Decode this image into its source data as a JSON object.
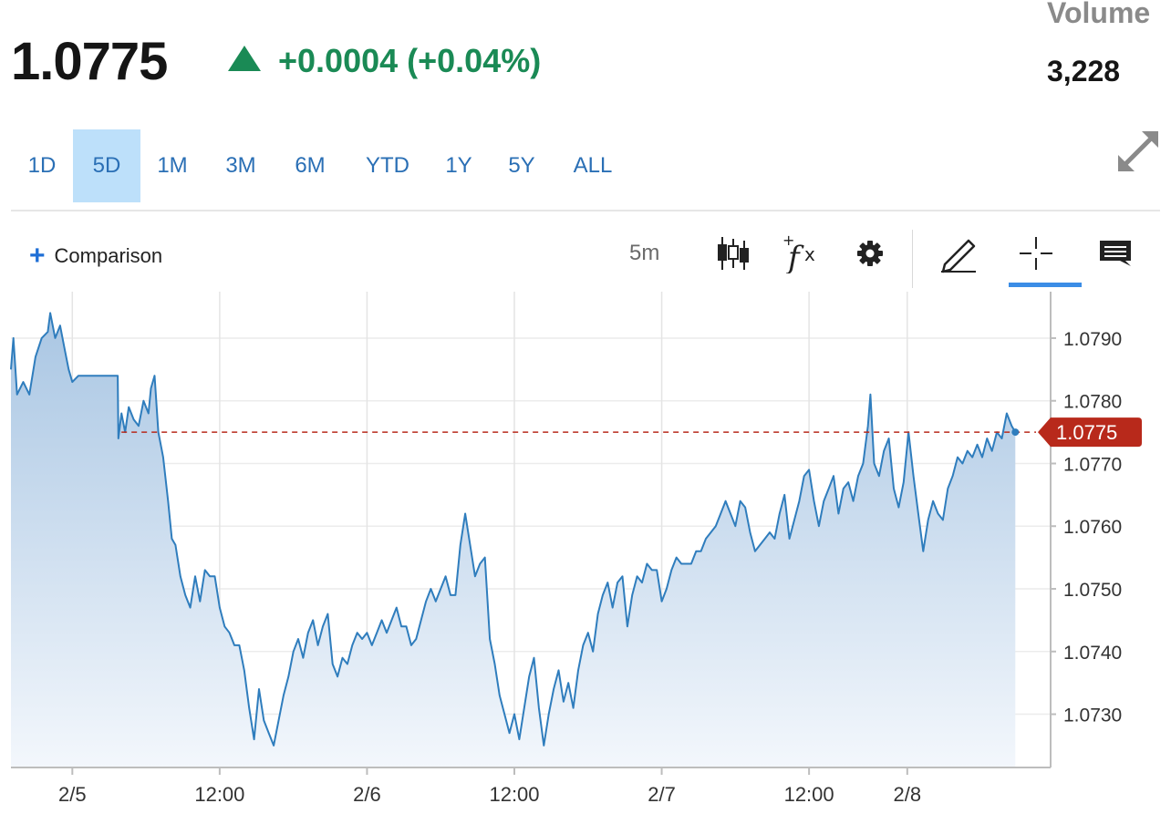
{
  "quote": {
    "price": "1.0775",
    "change": "+0.0004 (+0.04%)",
    "change_color": "#1a8a55",
    "volume_label": "Volume",
    "volume": "3,228"
  },
  "ranges": [
    {
      "label": "1D",
      "active": false
    },
    {
      "label": "5D",
      "active": true
    },
    {
      "label": "1M",
      "active": false
    },
    {
      "label": "3M",
      "active": false
    },
    {
      "label": "6M",
      "active": false
    },
    {
      "label": "YTD",
      "active": false
    },
    {
      "label": "1Y",
      "active": false
    },
    {
      "label": "5Y",
      "active": false
    },
    {
      "label": "ALL",
      "active": false
    }
  ],
  "toolbar": {
    "comparison_label": "Comparison",
    "interval_label": "5m",
    "icons": [
      "candlestick-icon",
      "fx-indicator-icon",
      "gear-icon",
      "pencil-icon",
      "crosshair-icon",
      "comment-icon"
    ],
    "active_tool": "crosshair-icon"
  },
  "colors": {
    "line": "#2f7dbd",
    "area_top": "#a9c6e3",
    "area_bottom": "#f3f7fc",
    "last_price_tag": "#b8291b",
    "accent": "#3b8de6"
  },
  "chart_data": {
    "type": "area",
    "x_unit": "hours from start of 2/5 session",
    "x_range": [
      -5,
      77
    ],
    "y_range": [
      1.07215,
      1.07945
    ],
    "y_ticks": [
      "1.0790",
      "1.0780",
      "1.0770",
      "1.0760",
      "1.0750",
      "1.0740",
      "1.0730"
    ],
    "y_tick_values": [
      1.079,
      1.078,
      1.077,
      1.076,
      1.075,
      1.074,
      1.073
    ],
    "x_ticks": [
      {
        "label": "2/5",
        "x": 0
      },
      {
        "label": "12:00",
        "x": 12
      },
      {
        "label": "2/6",
        "x": 24
      },
      {
        "label": "12:00",
        "x": 36
      },
      {
        "label": "2/7",
        "x": 48
      },
      {
        "label": "12:00",
        "x": 60
      },
      {
        "label": "2/8",
        "x": 68
      }
    ],
    "gridlines": true,
    "last_price": 1.0775,
    "last_price_label": "1.0775",
    "reference_line_start_x": 4,
    "series": [
      {
        "points": [
          [
            -5.0,
            1.0785
          ],
          [
            -4.8,
            1.079
          ],
          [
            -4.5,
            1.0781
          ],
          [
            -4.0,
            1.0783
          ],
          [
            -3.5,
            1.0781
          ],
          [
            -3.0,
            1.0787
          ],
          [
            -2.5,
            1.079
          ],
          [
            -2.0,
            1.0791
          ],
          [
            -1.8,
            1.0794
          ],
          [
            -1.4,
            1.079
          ],
          [
            -1.0,
            1.0792
          ],
          [
            -0.6,
            1.0788
          ],
          [
            -0.3,
            1.0785
          ],
          [
            0.0,
            1.0783
          ],
          [
            0.5,
            1.0784
          ],
          [
            2.5,
            1.0784
          ],
          [
            3.7,
            1.0784
          ],
          [
            3.75,
            1.0774
          ],
          [
            4.0,
            1.0778
          ],
          [
            4.3,
            1.0775
          ],
          [
            4.6,
            1.0779
          ],
          [
            5.0,
            1.0777
          ],
          [
            5.4,
            1.0776
          ],
          [
            5.8,
            1.078
          ],
          [
            6.2,
            1.0778
          ],
          [
            6.4,
            1.0782
          ],
          [
            6.7,
            1.0784
          ],
          [
            7.0,
            1.0775
          ],
          [
            7.4,
            1.0771
          ],
          [
            7.8,
            1.0764
          ],
          [
            8.1,
            1.0758
          ],
          [
            8.4,
            1.0757
          ],
          [
            8.8,
            1.0752
          ],
          [
            9.2,
            1.0749
          ],
          [
            9.6,
            1.0747
          ],
          [
            10.0,
            1.0752
          ],
          [
            10.4,
            1.0748
          ],
          [
            10.8,
            1.0753
          ],
          [
            11.2,
            1.0752
          ],
          [
            11.6,
            1.0752
          ],
          [
            12.0,
            1.0747
          ],
          [
            12.4,
            1.0744
          ],
          [
            12.8,
            1.0743
          ],
          [
            13.2,
            1.0741
          ],
          [
            13.6,
            1.0741
          ],
          [
            14.0,
            1.0737
          ],
          [
            14.4,
            1.0731
          ],
          [
            14.8,
            1.0726
          ],
          [
            15.2,
            1.0734
          ],
          [
            15.6,
            1.0729
          ],
          [
            16.0,
            1.0727
          ],
          [
            16.4,
            1.0725
          ],
          [
            16.8,
            1.0729
          ],
          [
            17.2,
            1.0733
          ],
          [
            17.6,
            1.0736
          ],
          [
            18.0,
            1.074
          ],
          [
            18.4,
            1.0742
          ],
          [
            18.8,
            1.0739
          ],
          [
            19.2,
            1.0743
          ],
          [
            19.6,
            1.0745
          ],
          [
            20.0,
            1.0741
          ],
          [
            20.4,
            1.0744
          ],
          [
            20.8,
            1.0746
          ],
          [
            21.2,
            1.0738
          ],
          [
            21.6,
            1.0736
          ],
          [
            22.0,
            1.0739
          ],
          [
            22.4,
            1.0738
          ],
          [
            22.8,
            1.0741
          ],
          [
            23.2,
            1.0743
          ],
          [
            23.6,
            1.0742
          ],
          [
            24.0,
            1.0743
          ],
          [
            24.4,
            1.0741
          ],
          [
            24.8,
            1.0743
          ],
          [
            25.2,
            1.0745
          ],
          [
            25.6,
            1.0743
          ],
          [
            26.0,
            1.0745
          ],
          [
            26.4,
            1.0747
          ],
          [
            26.8,
            1.0744
          ],
          [
            27.2,
            1.0744
          ],
          [
            27.6,
            1.0741
          ],
          [
            28.0,
            1.0742
          ],
          [
            28.4,
            1.0745
          ],
          [
            28.8,
            1.0748
          ],
          [
            29.2,
            1.075
          ],
          [
            29.6,
            1.0748
          ],
          [
            30.0,
            1.075
          ],
          [
            30.4,
            1.0752
          ],
          [
            30.8,
            1.0749
          ],
          [
            31.2,
            1.0749
          ],
          [
            31.6,
            1.0757
          ],
          [
            32.0,
            1.0762
          ],
          [
            32.4,
            1.0757
          ],
          [
            32.8,
            1.0752
          ],
          [
            33.2,
            1.0754
          ],
          [
            33.6,
            1.0755
          ],
          [
            34.0,
            1.0742
          ],
          [
            34.4,
            1.0738
          ],
          [
            34.8,
            1.0733
          ],
          [
            35.2,
            1.073
          ],
          [
            35.6,
            1.0727
          ],
          [
            36.0,
            1.073
          ],
          [
            36.4,
            1.0726
          ],
          [
            36.8,
            1.0731
          ],
          [
            37.2,
            1.0736
          ],
          [
            37.6,
            1.0739
          ],
          [
            38.0,
            1.0731
          ],
          [
            38.4,
            1.0725
          ],
          [
            38.8,
            1.073
          ],
          [
            39.2,
            1.0734
          ],
          [
            39.6,
            1.0737
          ],
          [
            40.0,
            1.0732
          ],
          [
            40.4,
            1.0735
          ],
          [
            40.8,
            1.0731
          ],
          [
            41.2,
            1.0737
          ],
          [
            41.6,
            1.0741
          ],
          [
            42.0,
            1.0743
          ],
          [
            42.4,
            1.074
          ],
          [
            42.8,
            1.0746
          ],
          [
            43.2,
            1.0749
          ],
          [
            43.6,
            1.0751
          ],
          [
            44.0,
            1.0747
          ],
          [
            44.4,
            1.0751
          ],
          [
            44.8,
            1.0752
          ],
          [
            45.2,
            1.0744
          ],
          [
            45.6,
            1.0749
          ],
          [
            46.0,
            1.0752
          ],
          [
            46.4,
            1.0751
          ],
          [
            46.8,
            1.0754
          ],
          [
            47.2,
            1.0753
          ],
          [
            47.6,
            1.0753
          ],
          [
            48.0,
            1.0748
          ],
          [
            48.4,
            1.075
          ],
          [
            48.8,
            1.0753
          ],
          [
            49.2,
            1.0755
          ],
          [
            49.6,
            1.0754
          ],
          [
            50.0,
            1.0754
          ],
          [
            50.4,
            1.0754
          ],
          [
            50.8,
            1.0756
          ],
          [
            51.2,
            1.0756
          ],
          [
            51.6,
            1.0758
          ],
          [
            52.0,
            1.0759
          ],
          [
            52.4,
            1.076
          ],
          [
            52.8,
            1.0762
          ],
          [
            53.2,
            1.0764
          ],
          [
            53.6,
            1.0762
          ],
          [
            54.0,
            1.076
          ],
          [
            54.4,
            1.0764
          ],
          [
            54.8,
            1.0763
          ],
          [
            55.2,
            1.0759
          ],
          [
            55.6,
            1.0756
          ],
          [
            56.0,
            1.0757
          ],
          [
            56.4,
            1.0758
          ],
          [
            56.8,
            1.0759
          ],
          [
            57.2,
            1.0758
          ],
          [
            57.6,
            1.0762
          ],
          [
            58.0,
            1.0765
          ],
          [
            58.4,
            1.0758
          ],
          [
            58.8,
            1.0761
          ],
          [
            59.2,
            1.0764
          ],
          [
            59.6,
            1.0768
          ],
          [
            60.0,
            1.0769
          ],
          [
            60.4,
            1.0764
          ],
          [
            60.8,
            1.076
          ],
          [
            61.2,
            1.0764
          ],
          [
            61.6,
            1.0766
          ],
          [
            62.0,
            1.0768
          ],
          [
            62.4,
            1.0762
          ],
          [
            62.8,
            1.0766
          ],
          [
            63.2,
            1.0767
          ],
          [
            63.6,
            1.0764
          ],
          [
            64.0,
            1.0768
          ],
          [
            64.4,
            1.077
          ],
          [
            64.8,
            1.0776
          ],
          [
            65.0,
            1.0781
          ],
          [
            65.3,
            1.077
          ],
          [
            65.7,
            1.0768
          ],
          [
            66.1,
            1.0772
          ],
          [
            66.5,
            1.0774
          ],
          [
            66.9,
            1.0766
          ],
          [
            67.3,
            1.0763
          ],
          [
            67.7,
            1.0767
          ],
          [
            68.1,
            1.0775
          ],
          [
            68.5,
            1.0768
          ],
          [
            68.9,
            1.0762
          ],
          [
            69.3,
            1.0756
          ],
          [
            69.7,
            1.0761
          ],
          [
            70.1,
            1.0764
          ],
          [
            70.5,
            1.0762
          ],
          [
            70.9,
            1.0761
          ],
          [
            71.3,
            1.0766
          ],
          [
            71.7,
            1.0768
          ],
          [
            72.1,
            1.0771
          ],
          [
            72.5,
            1.077
          ],
          [
            72.9,
            1.0772
          ],
          [
            73.3,
            1.0771
          ],
          [
            73.7,
            1.0773
          ],
          [
            74.1,
            1.0771
          ],
          [
            74.5,
            1.0774
          ],
          [
            74.9,
            1.0772
          ],
          [
            75.3,
            1.0775
          ],
          [
            75.7,
            1.0774
          ],
          [
            76.1,
            1.0778
          ],
          [
            76.5,
            1.0776
          ],
          [
            76.8,
            1.0775
          ]
        ]
      }
    ]
  }
}
